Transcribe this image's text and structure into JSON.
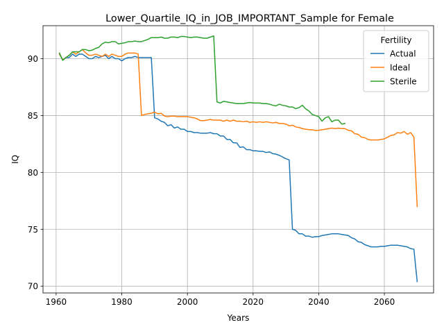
{
  "chart_data": {
    "type": "line",
    "title": "Lower_Quartile_IQ_in_JOB_IMPORTANT_Sample for Female",
    "xlabel": "Years",
    "ylabel": "IQ",
    "xlim": [
      1956,
      2075
    ],
    "ylim": [
      69.4,
      92.9
    ],
    "xticks": [
      1960,
      1980,
      2000,
      2020,
      2040,
      2060
    ],
    "yticks": [
      70,
      75,
      80,
      85,
      90
    ],
    "grid": true,
    "legend": {
      "title": "Fertility",
      "position": "top-right"
    },
    "series": [
      {
        "name": "Actual",
        "color": "#1f77b4",
        "points": [
          [
            1961,
            90.4
          ],
          [
            1962,
            89.9
          ],
          [
            1963,
            90.1
          ],
          [
            1964,
            90.1
          ],
          [
            1965,
            90.4
          ],
          [
            1966,
            90.2
          ],
          [
            1967,
            90.4
          ],
          [
            1968,
            90.4
          ],
          [
            1969,
            90.2
          ],
          [
            1970,
            90.0
          ],
          [
            1971,
            90.0
          ],
          [
            1972,
            90.2
          ],
          [
            1973,
            90.1
          ],
          [
            1974,
            90.2
          ],
          [
            1975,
            90.3
          ],
          [
            1976,
            90.0
          ],
          [
            1977,
            90.2
          ],
          [
            1978,
            90.0
          ],
          [
            1979,
            90.0
          ],
          [
            1980,
            89.8
          ],
          [
            1981,
            90.0
          ],
          [
            1982,
            90.1
          ],
          [
            1983,
            90.1
          ],
          [
            1984,
            90.2
          ],
          [
            1985,
            90.1
          ],
          [
            1986,
            90.1
          ],
          [
            1987,
            90.1
          ],
          [
            1988,
            90.1
          ],
          [
            1989,
            90.1
          ],
          [
            1990,
            84.8
          ],
          [
            1991,
            84.7
          ],
          [
            1992,
            84.5
          ],
          [
            1993,
            84.4
          ],
          [
            1994,
            84.1
          ],
          [
            1995,
            84.2
          ],
          [
            1996,
            83.9
          ],
          [
            1997,
            84.0
          ],
          [
            1998,
            83.8
          ],
          [
            1999,
            83.8
          ],
          [
            2000,
            83.6
          ],
          [
            2001,
            83.6
          ],
          [
            2002,
            83.5
          ],
          [
            2003,
            83.5
          ],
          [
            2004,
            83.45
          ],
          [
            2005,
            83.45
          ],
          [
            2006,
            83.45
          ],
          [
            2007,
            83.5
          ],
          [
            2008,
            83.4
          ],
          [
            2009,
            83.4
          ],
          [
            2010,
            83.2
          ],
          [
            2011,
            83.2
          ],
          [
            2012,
            82.9
          ],
          [
            2013,
            82.9
          ],
          [
            2014,
            82.6
          ],
          [
            2015,
            82.6
          ],
          [
            2016,
            82.2
          ],
          [
            2017,
            82.25
          ],
          [
            2018,
            82.0
          ],
          [
            2019,
            82.0
          ],
          [
            2020,
            81.9
          ],
          [
            2021,
            81.9
          ],
          [
            2022,
            81.85
          ],
          [
            2023,
            81.85
          ],
          [
            2024,
            81.75
          ],
          [
            2025,
            81.8
          ],
          [
            2026,
            81.65
          ],
          [
            2027,
            81.6
          ],
          [
            2028,
            81.5
          ],
          [
            2029,
            81.35
          ],
          [
            2030,
            81.2
          ],
          [
            2031,
            81.1
          ],
          [
            2032,
            75.0
          ],
          [
            2033,
            74.9
          ],
          [
            2034,
            74.6
          ],
          [
            2035,
            74.6
          ],
          [
            2036,
            74.4
          ],
          [
            2037,
            74.4
          ],
          [
            2038,
            74.3
          ],
          [
            2039,
            74.35
          ],
          [
            2040,
            74.35
          ],
          [
            2041,
            74.45
          ],
          [
            2042,
            74.5
          ],
          [
            2043,
            74.55
          ],
          [
            2044,
            74.6
          ],
          [
            2045,
            74.6
          ],
          [
            2046,
            74.6
          ],
          [
            2047,
            74.55
          ],
          [
            2048,
            74.5
          ],
          [
            2049,
            74.45
          ],
          [
            2050,
            74.25
          ],
          [
            2051,
            74.15
          ],
          [
            2052,
            73.9
          ],
          [
            2053,
            73.85
          ],
          [
            2054,
            73.65
          ],
          [
            2055,
            73.55
          ],
          [
            2056,
            73.45
          ],
          [
            2057,
            73.45
          ],
          [
            2058,
            73.45
          ],
          [
            2059,
            73.5
          ],
          [
            2060,
            73.5
          ],
          [
            2061,
            73.55
          ],
          [
            2062,
            73.6
          ],
          [
            2063,
            73.6
          ],
          [
            2064,
            73.6
          ],
          [
            2065,
            73.55
          ],
          [
            2066,
            73.5
          ],
          [
            2067,
            73.45
          ],
          [
            2068,
            73.3
          ],
          [
            2069,
            73.25
          ],
          [
            2070,
            70.4
          ]
        ]
      },
      {
        "name": "Ideal",
        "color": "#ff7f0e",
        "points": [
          [
            1961,
            90.4
          ],
          [
            1962,
            89.9
          ],
          [
            1963,
            90.1
          ],
          [
            1964,
            90.3
          ],
          [
            1965,
            90.6
          ],
          [
            1966,
            90.4
          ],
          [
            1967,
            90.6
          ],
          [
            1968,
            90.8
          ],
          [
            1969,
            90.5
          ],
          [
            1970,
            90.3
          ],
          [
            1971,
            90.3
          ],
          [
            1972,
            90.4
          ],
          [
            1973,
            90.3
          ],
          [
            1974,
            90.2
          ],
          [
            1975,
            90.4
          ],
          [
            1976,
            90.2
          ],
          [
            1977,
            90.4
          ],
          [
            1978,
            90.3
          ],
          [
            1979,
            90.2
          ],
          [
            1980,
            90.2
          ],
          [
            1981,
            90.4
          ],
          [
            1982,
            90.5
          ],
          [
            1983,
            90.5
          ],
          [
            1984,
            90.5
          ],
          [
            1985,
            90.4
          ],
          [
            1986,
            85.0
          ],
          [
            1987,
            85.1
          ],
          [
            1988,
            85.15
          ],
          [
            1989,
            85.2
          ],
          [
            1990,
            85.3
          ],
          [
            1991,
            85.15
          ],
          [
            1992,
            85.2
          ],
          [
            1993,
            84.95
          ],
          [
            1994,
            84.9
          ],
          [
            1995,
            84.95
          ],
          [
            1996,
            84.95
          ],
          [
            1997,
            84.9
          ],
          [
            1998,
            84.9
          ],
          [
            1999,
            84.9
          ],
          [
            2000,
            84.9
          ],
          [
            2001,
            84.85
          ],
          [
            2002,
            84.8
          ],
          [
            2003,
            84.7
          ],
          [
            2004,
            84.55
          ],
          [
            2005,
            84.55
          ],
          [
            2006,
            84.6
          ],
          [
            2007,
            84.65
          ],
          [
            2008,
            84.6
          ],
          [
            2009,
            84.6
          ],
          [
            2010,
            84.6
          ],
          [
            2011,
            84.5
          ],
          [
            2012,
            84.6
          ],
          [
            2013,
            84.5
          ],
          [
            2014,
            84.6
          ],
          [
            2015,
            84.5
          ],
          [
            2016,
            84.5
          ],
          [
            2017,
            84.45
          ],
          [
            2018,
            84.5
          ],
          [
            2019,
            84.4
          ],
          [
            2020,
            84.45
          ],
          [
            2021,
            84.4
          ],
          [
            2022,
            84.45
          ],
          [
            2023,
            84.4
          ],
          [
            2024,
            84.45
          ],
          [
            2025,
            84.4
          ],
          [
            2026,
            84.35
          ],
          [
            2027,
            84.4
          ],
          [
            2028,
            84.3
          ],
          [
            2029,
            84.3
          ],
          [
            2030,
            84.25
          ],
          [
            2031,
            84.1
          ],
          [
            2032,
            84.15
          ],
          [
            2033,
            84.0
          ],
          [
            2034,
            83.95
          ],
          [
            2035,
            83.85
          ],
          [
            2036,
            83.8
          ],
          [
            2037,
            83.75
          ],
          [
            2038,
            83.75
          ],
          [
            2039,
            83.7
          ],
          [
            2040,
            83.7
          ],
          [
            2041,
            83.75
          ],
          [
            2042,
            83.8
          ],
          [
            2043,
            83.85
          ],
          [
            2044,
            83.9
          ],
          [
            2045,
            83.85
          ],
          [
            2046,
            83.9
          ],
          [
            2047,
            83.85
          ],
          [
            2048,
            83.85
          ],
          [
            2049,
            83.7
          ],
          [
            2050,
            83.65
          ],
          [
            2051,
            83.4
          ],
          [
            2052,
            83.35
          ],
          [
            2053,
            83.1
          ],
          [
            2054,
            83.05
          ],
          [
            2055,
            82.9
          ],
          [
            2056,
            82.85
          ],
          [
            2057,
            82.85
          ],
          [
            2058,
            82.85
          ],
          [
            2059,
            82.9
          ],
          [
            2060,
            82.95
          ],
          [
            2061,
            83.1
          ],
          [
            2062,
            83.25
          ],
          [
            2063,
            83.3
          ],
          [
            2064,
            83.5
          ],
          [
            2065,
            83.45
          ],
          [
            2066,
            83.6
          ],
          [
            2067,
            83.35
          ],
          [
            2068,
            83.5
          ],
          [
            2069,
            83.1
          ],
          [
            2070,
            77.0
          ]
        ]
      },
      {
        "name": "Sterile",
        "color": "#2ca02c",
        "points": [
          [
            1961,
            90.5
          ],
          [
            1962,
            89.85
          ],
          [
            1963,
            90.1
          ],
          [
            1964,
            90.3
          ],
          [
            1965,
            90.6
          ],
          [
            1966,
            90.6
          ],
          [
            1967,
            90.6
          ],
          [
            1968,
            90.8
          ],
          [
            1969,
            90.8
          ],
          [
            1970,
            90.7
          ],
          [
            1971,
            90.75
          ],
          [
            1972,
            90.9
          ],
          [
            1973,
            91.0
          ],
          [
            1974,
            91.3
          ],
          [
            1975,
            91.45
          ],
          [
            1976,
            91.4
          ],
          [
            1977,
            91.5
          ],
          [
            1978,
            91.5
          ],
          [
            1979,
            91.3
          ],
          [
            1980,
            91.35
          ],
          [
            1981,
            91.4
          ],
          [
            1982,
            91.5
          ],
          [
            1983,
            91.5
          ],
          [
            1984,
            91.55
          ],
          [
            1985,
            91.5
          ],
          [
            1986,
            91.5
          ],
          [
            1987,
            91.6
          ],
          [
            1988,
            91.7
          ],
          [
            1989,
            91.85
          ],
          [
            1990,
            91.85
          ],
          [
            1991,
            91.85
          ],
          [
            1992,
            91.9
          ],
          [
            1993,
            91.8
          ],
          [
            1994,
            91.8
          ],
          [
            1995,
            91.9
          ],
          [
            1996,
            91.9
          ],
          [
            1997,
            91.85
          ],
          [
            1998,
            91.95
          ],
          [
            1999,
            91.95
          ],
          [
            2000,
            91.9
          ],
          [
            2001,
            91.85
          ],
          [
            2002,
            91.9
          ],
          [
            2003,
            91.9
          ],
          [
            2004,
            91.85
          ],
          [
            2005,
            91.8
          ],
          [
            2006,
            91.8
          ],
          [
            2007,
            91.9
          ],
          [
            2008,
            92.0
          ],
          [
            2009,
            86.2
          ],
          [
            2010,
            86.1
          ],
          [
            2011,
            86.25
          ],
          [
            2012,
            86.2
          ],
          [
            2013,
            86.15
          ],
          [
            2014,
            86.1
          ],
          [
            2015,
            86.05
          ],
          [
            2016,
            86.05
          ],
          [
            2017,
            86.05
          ],
          [
            2018,
            86.1
          ],
          [
            2019,
            86.15
          ],
          [
            2020,
            86.1
          ],
          [
            2021,
            86.1
          ],
          [
            2022,
            86.1
          ],
          [
            2023,
            86.05
          ],
          [
            2024,
            86.05
          ],
          [
            2025,
            86.0
          ],
          [
            2026,
            85.9
          ],
          [
            2027,
            85.85
          ],
          [
            2028,
            86.0
          ],
          [
            2029,
            85.9
          ],
          [
            2030,
            85.85
          ],
          [
            2031,
            85.75
          ],
          [
            2032,
            85.75
          ],
          [
            2033,
            85.6
          ],
          [
            2034,
            85.7
          ],
          [
            2035,
            85.9
          ],
          [
            2036,
            85.6
          ],
          [
            2037,
            85.4
          ],
          [
            2038,
            85.1
          ],
          [
            2039,
            85.0
          ],
          [
            2040,
            84.9
          ],
          [
            2041,
            84.5
          ],
          [
            2042,
            84.8
          ],
          [
            2043,
            84.9
          ],
          [
            2044,
            84.45
          ],
          [
            2045,
            84.6
          ],
          [
            2046,
            84.6
          ],
          [
            2047,
            84.25
          ],
          [
            2048,
            84.3
          ]
        ]
      }
    ]
  }
}
